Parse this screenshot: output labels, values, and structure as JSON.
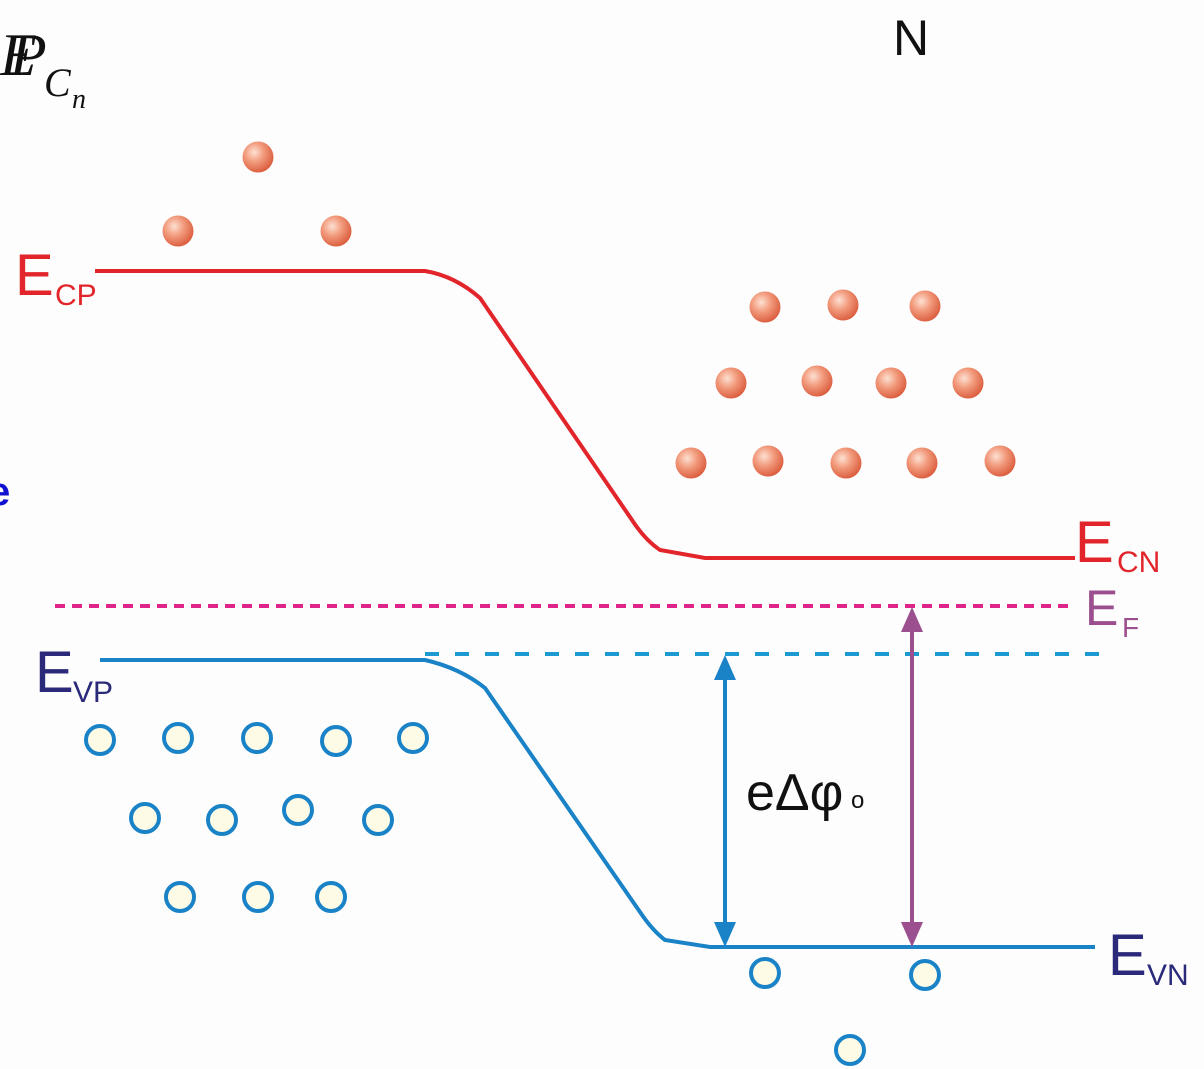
{
  "header": {
    "corner": {
      "main": [
        "E",
        "P"
      ],
      "sub": "C",
      "subsub": "n"
    },
    "region": "N",
    "edge_text": "e"
  },
  "levels": [
    {
      "main": "E",
      "sub": "CP"
    },
    {
      "main": "E",
      "sub": "CN"
    },
    {
      "main": "E",
      "sub": "F"
    },
    {
      "main": "E",
      "sub": "VP"
    },
    {
      "main": "E",
      "sub": "VN"
    }
  ],
  "gap_label": {
    "main": "eΔφ",
    "sub": "o"
  }
}
